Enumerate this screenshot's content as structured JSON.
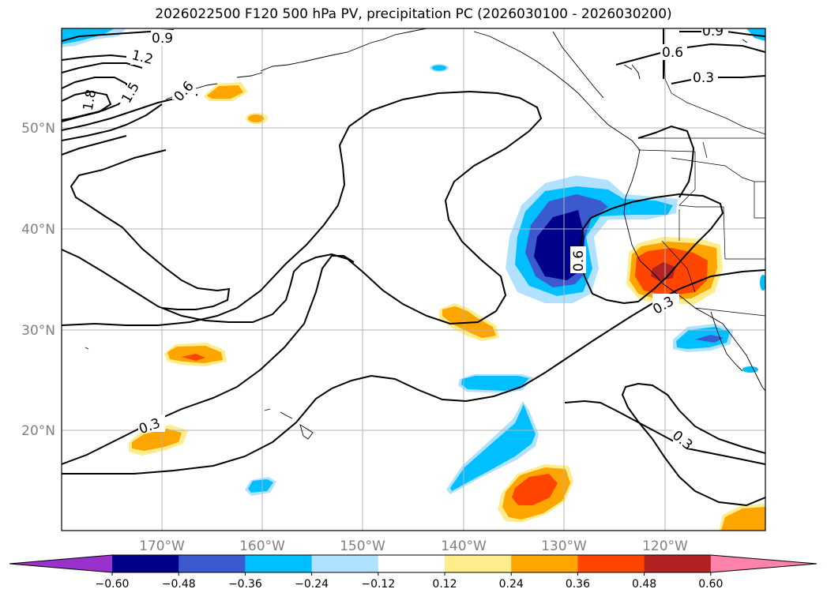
{
  "title": "2026022500 F120 500 hPa PV, precipitation PC (2026030100 - 2026030200)",
  "lon_labels": [
    "170°W",
    "160°W",
    "150°W",
    "140°W",
    "130°W",
    "120°W"
  ],
  "lat_labels": [
    "50°N",
    "40°N",
    "30°N",
    "20°N"
  ],
  "contour_labels": [
    "0.9",
    "1.2",
    "1.5",
    "1.8",
    "0.6",
    "0.9",
    "0.6",
    "0.3",
    "0.6",
    "0.3",
    "0.3",
    "0.3"
  ],
  "colorbar": {
    "ticks": [
      "−0.60",
      "−0.48",
      "−0.36",
      "−0.24",
      "−0.12",
      "0.12",
      "0.24",
      "0.36",
      "0.48",
      "0.60"
    ],
    "colors": [
      "#9932cc",
      "#00008b",
      "#3a5acd",
      "#00bfff",
      "#b0e2ff",
      "#ffffff",
      "#ffec8b",
      "#ffa500",
      "#ff4500",
      "#b22222",
      "#ff82ab"
    ]
  }
}
